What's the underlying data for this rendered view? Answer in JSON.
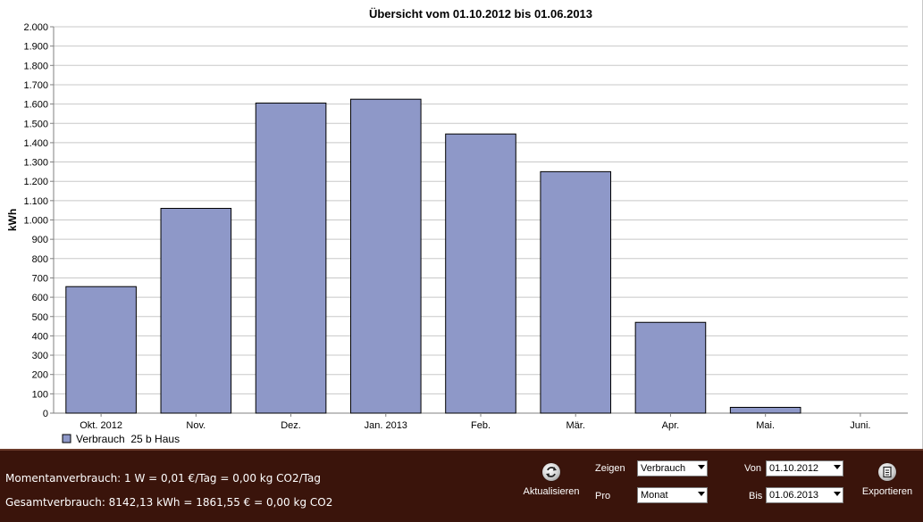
{
  "chart_data": {
    "type": "bar",
    "title": "Übersicht vom 01.10.2012 bis 01.06.2013",
    "ylabel": "kWh",
    "xlabel": "",
    "ylim": [
      0,
      2000
    ],
    "yticks": [
      0,
      100,
      200,
      300,
      400,
      500,
      600,
      700,
      800,
      900,
      1000,
      1100,
      1200,
      1300,
      1400,
      1500,
      1600,
      1700,
      1800,
      1900,
      2000
    ],
    "ytick_labels": [
      "0",
      "100",
      "200",
      "300",
      "400",
      "500",
      "600",
      "700",
      "800",
      "900",
      "1.000",
      "1.100",
      "1.200",
      "1.300",
      "1.400",
      "1.500",
      "1.600",
      "1.700",
      "1.800",
      "1.900",
      "2.000"
    ],
    "categories": [
      "Okt. 2012",
      "Nov.",
      "Dez.",
      "Jan. 2013",
      "Feb.",
      "Mär.",
      "Apr.",
      "Mai.",
      "Juni."
    ],
    "series": [
      {
        "name": "Verbrauch  25 b Haus",
        "values": [
          655,
          1060,
          1605,
          1625,
          1445,
          1250,
          470,
          30,
          0
        ],
        "color": "#8e98c8"
      }
    ],
    "grid": true,
    "legend": "bottom-left"
  },
  "status": {
    "momentary": "Momentanverbrauch: 1 W = 0,01 €/Tag = 0,00 kg CO2/Tag",
    "total": "Gesamtverbrauch: 8142,13 kWh = 1861,55 € = 0,00 kg CO2"
  },
  "controls": {
    "refresh_label": "Aktualisieren",
    "show_label": "Zeigen",
    "show_value": "Verbrauch",
    "per_label": "Pro",
    "per_value": "Monat",
    "from_label": "Von",
    "from_value": "01.10.2012",
    "to_label": "Bis",
    "to_value": "01.06.2013",
    "export_label": "Exportieren"
  }
}
